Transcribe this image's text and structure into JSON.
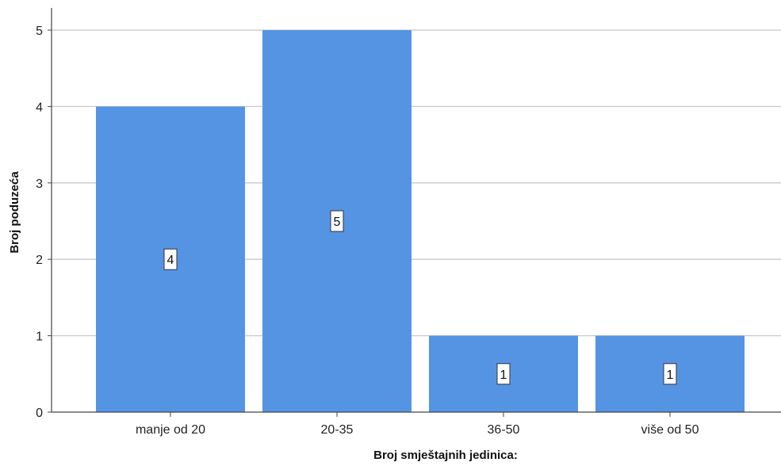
{
  "chart_data": {
    "type": "bar",
    "categories": [
      "manje od 20",
      "20-35",
      "36-50",
      "više od 50"
    ],
    "values": [
      4,
      5,
      1,
      1
    ],
    "data_labels": [
      "4",
      "5",
      "1",
      "1"
    ],
    "title": "",
    "xlabel": "Broj smještajnih jedinica:",
    "ylabel": "Broj poduzeća",
    "ylim": [
      0,
      5
    ],
    "yticks": [
      "0",
      "1",
      "2",
      "3",
      "4",
      "5"
    ],
    "grid": true,
    "legend": "none",
    "colors": {
      "bar": "#5594e3",
      "grid": "#c8c8c8",
      "axis": "#444444",
      "label_bg": "#ffffff",
      "label_border": "#333333"
    }
  }
}
